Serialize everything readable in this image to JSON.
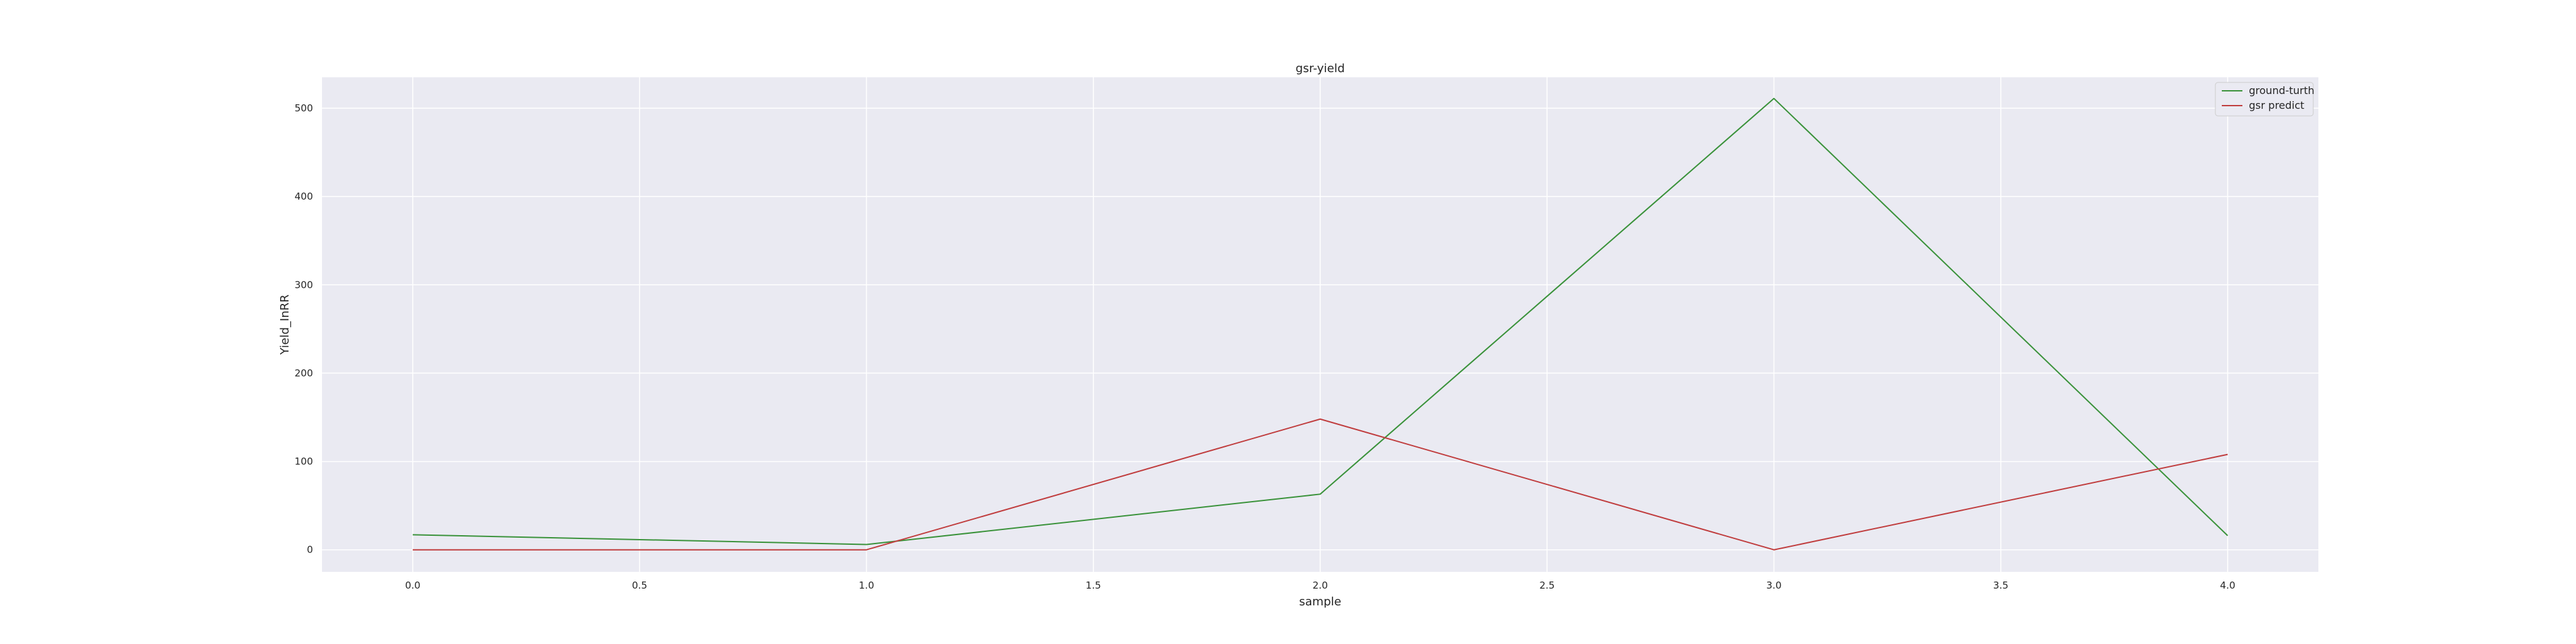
{
  "chart_data": {
    "type": "line",
    "title": "gsr-yield",
    "xlabel": "sample",
    "ylabel": "Yield_InRR",
    "x": [
      0,
      1,
      2,
      3,
      4
    ],
    "xlim": [
      -0.2,
      4.2
    ],
    "ylim": [
      -25,
      535
    ],
    "xticks": [
      "0.0",
      "0.5",
      "1.0",
      "1.5",
      "2.0",
      "2.5",
      "3.0",
      "3.5",
      "4.0"
    ],
    "yticks": [
      "0",
      "100",
      "200",
      "300",
      "400",
      "500"
    ],
    "grid": true,
    "legend_position": "top-right",
    "background": "#eaeaf2",
    "series": [
      {
        "name": "ground-turth",
        "color": "#3a923a",
        "values": [
          17,
          6,
          63,
          511,
          16
        ]
      },
      {
        "name": "gsr predict",
        "color": "#c03d3e",
        "values": [
          0,
          0,
          148,
          0,
          108
        ]
      }
    ]
  }
}
